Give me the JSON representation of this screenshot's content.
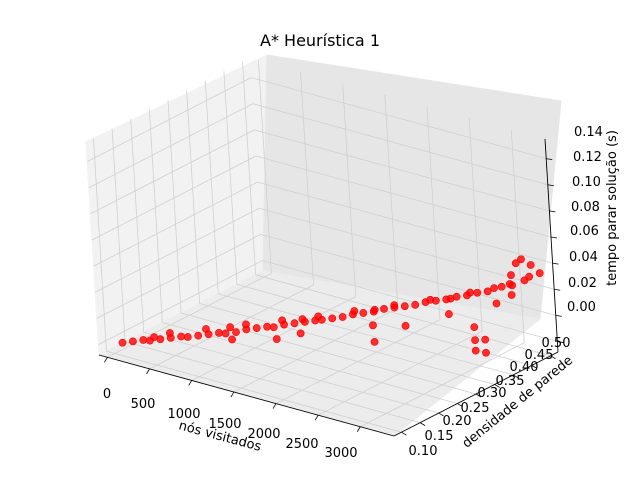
{
  "chart_data": {
    "type": "scatter",
    "projection": "3d",
    "title": "A* Heurística 1",
    "xlabel": "nós visitados",
    "ylabel": "densidade de parede",
    "zlabel": "tempo parar solução (s)",
    "x_ticks": [
      "0",
      "500",
      "1000",
      "1500",
      "2000",
      "2500",
      "3000"
    ],
    "y_ticks": [
      "0.10",
      "0.15",
      "0.20",
      "0.25",
      "0.30",
      "0.35",
      "0.40",
      "0.45",
      "0.50"
    ],
    "z_ticks": [
      "0.00",
      "0.02",
      "0.04",
      "0.06",
      "0.08",
      "0.10",
      "0.12",
      "0.14"
    ],
    "xlim": [
      -100,
      3400
    ],
    "ylim": [
      0.08,
      0.52
    ],
    "zlim": [
      -0.008,
      0.155
    ],
    "grid": true,
    "marker_color": "#ff0000",
    "series": [
      {
        "points": [
          [
            100,
            0.1,
            0.002
          ],
          [
            180,
            0.11,
            0.003
          ],
          [
            260,
            0.12,
            0.004
          ],
          [
            340,
            0.12,
            0.005
          ],
          [
            420,
            0.13,
            0.006
          ],
          [
            500,
            0.14,
            0.007
          ],
          [
            580,
            0.15,
            0.008
          ],
          [
            660,
            0.15,
            0.009
          ],
          [
            740,
            0.16,
            0.01
          ],
          [
            820,
            0.17,
            0.011
          ],
          [
            900,
            0.18,
            0.012
          ],
          [
            980,
            0.18,
            0.013
          ],
          [
            1060,
            0.19,
            0.014
          ],
          [
            1140,
            0.2,
            0.016
          ],
          [
            1220,
            0.21,
            0.017
          ],
          [
            1300,
            0.22,
            0.018
          ],
          [
            1380,
            0.22,
            0.019
          ],
          [
            1460,
            0.23,
            0.021
          ],
          [
            1540,
            0.24,
            0.022
          ],
          [
            1620,
            0.25,
            0.023
          ],
          [
            1700,
            0.26,
            0.024
          ],
          [
            1780,
            0.26,
            0.026
          ],
          [
            1860,
            0.27,
            0.027
          ],
          [
            1940,
            0.28,
            0.028
          ],
          [
            2020,
            0.29,
            0.03
          ],
          [
            2100,
            0.3,
            0.031
          ],
          [
            2180,
            0.31,
            0.032
          ],
          [
            2260,
            0.32,
            0.034
          ],
          [
            2340,
            0.33,
            0.035
          ],
          [
            2420,
            0.34,
            0.036
          ],
          [
            2500,
            0.35,
            0.037
          ],
          [
            2580,
            0.36,
            0.039
          ],
          [
            2660,
            0.37,
            0.04
          ],
          [
            2740,
            0.38,
            0.041
          ],
          [
            2820,
            0.39,
            0.043
          ],
          [
            2900,
            0.4,
            0.044
          ],
          [
            2980,
            0.41,
            0.046
          ],
          [
            3060,
            0.42,
            0.047
          ],
          [
            3140,
            0.44,
            0.049
          ],
          [
            3220,
            0.45,
            0.05
          ],
          [
            3280,
            0.47,
            0.052
          ],
          [
            3330,
            0.5,
            0.054
          ],
          [
            400,
            0.16,
            0.006
          ],
          [
            700,
            0.19,
            0.01
          ],
          [
            1000,
            0.23,
            0.013
          ],
          [
            1300,
            0.26,
            0.017
          ],
          [
            1600,
            0.29,
            0.021
          ],
          [
            1900,
            0.32,
            0.026
          ],
          [
            2200,
            0.36,
            0.03
          ],
          [
            2500,
            0.39,
            0.035
          ],
          [
            2800,
            0.43,
            0.04
          ],
          [
            3100,
            0.47,
            0.046
          ],
          [
            3200,
            0.5,
            0.049
          ],
          [
            300,
            0.14,
            0.004
          ],
          [
            900,
            0.21,
            0.012
          ],
          [
            1500,
            0.27,
            0.02
          ],
          [
            2100,
            0.33,
            0.029
          ],
          [
            2700,
            0.4,
            0.038
          ],
          [
            3000,
            0.45,
            0.044
          ],
          [
            1100,
            0.17,
            0.012
          ],
          [
            1700,
            0.22,
            0.02
          ],
          [
            2300,
            0.28,
            0.028
          ],
          [
            2900,
            0.35,
            0.037
          ],
          [
            3250,
            0.4,
            0.044
          ],
          [
            3300,
            0.43,
            0.047
          ],
          [
            3150,
            0.36,
            0.012
          ],
          [
            3150,
            0.36,
            0.02
          ],
          [
            3150,
            0.36,
            0.03
          ],
          [
            3180,
            0.38,
            0.008
          ],
          [
            3180,
            0.38,
            0.018
          ],
          [
            3260,
            0.44,
            0.06
          ],
          [
            3300,
            0.46,
            0.07
          ],
          [
            3280,
            0.45,
            0.068
          ],
          [
            3320,
            0.48,
            0.063
          ],
          [
            2400,
            0.26,
            0.02
          ],
          [
            1500,
            0.2,
            0.015
          ],
          [
            2600,
            0.3,
            0.03
          ]
        ]
      }
    ]
  }
}
